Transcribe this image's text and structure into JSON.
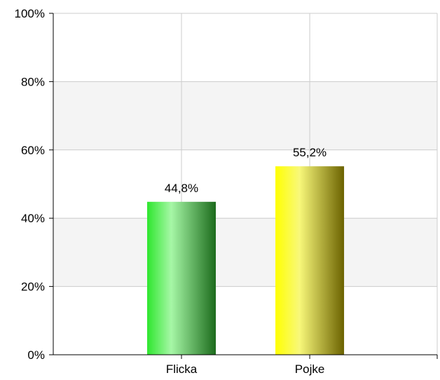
{
  "chart_data": {
    "type": "bar",
    "title": "",
    "xlabel": "",
    "ylabel": "",
    "categories": [
      "Flicka",
      "Pojke"
    ],
    "values": [
      44.8,
      55.2
    ],
    "value_labels": [
      "44,8%",
      "55,2%"
    ],
    "ylim": [
      0,
      100
    ],
    "y_ticks": [
      0,
      20,
      40,
      60,
      80,
      100
    ],
    "y_tick_labels": [
      "0%",
      "20%",
      "40%",
      "60%",
      "80%",
      "100%"
    ],
    "grid": true,
    "legend": "none",
    "colors": {
      "bar_gradients": [
        [
          "#2ee62e",
          "#a6f7a6",
          "#1c6b1c"
        ],
        [
          "#ffff00",
          "#f8f87a",
          "#6b6200"
        ]
      ],
      "band_fill": "#f4f4f4",
      "gridline": "#cccccc",
      "axis": "#000000"
    }
  }
}
